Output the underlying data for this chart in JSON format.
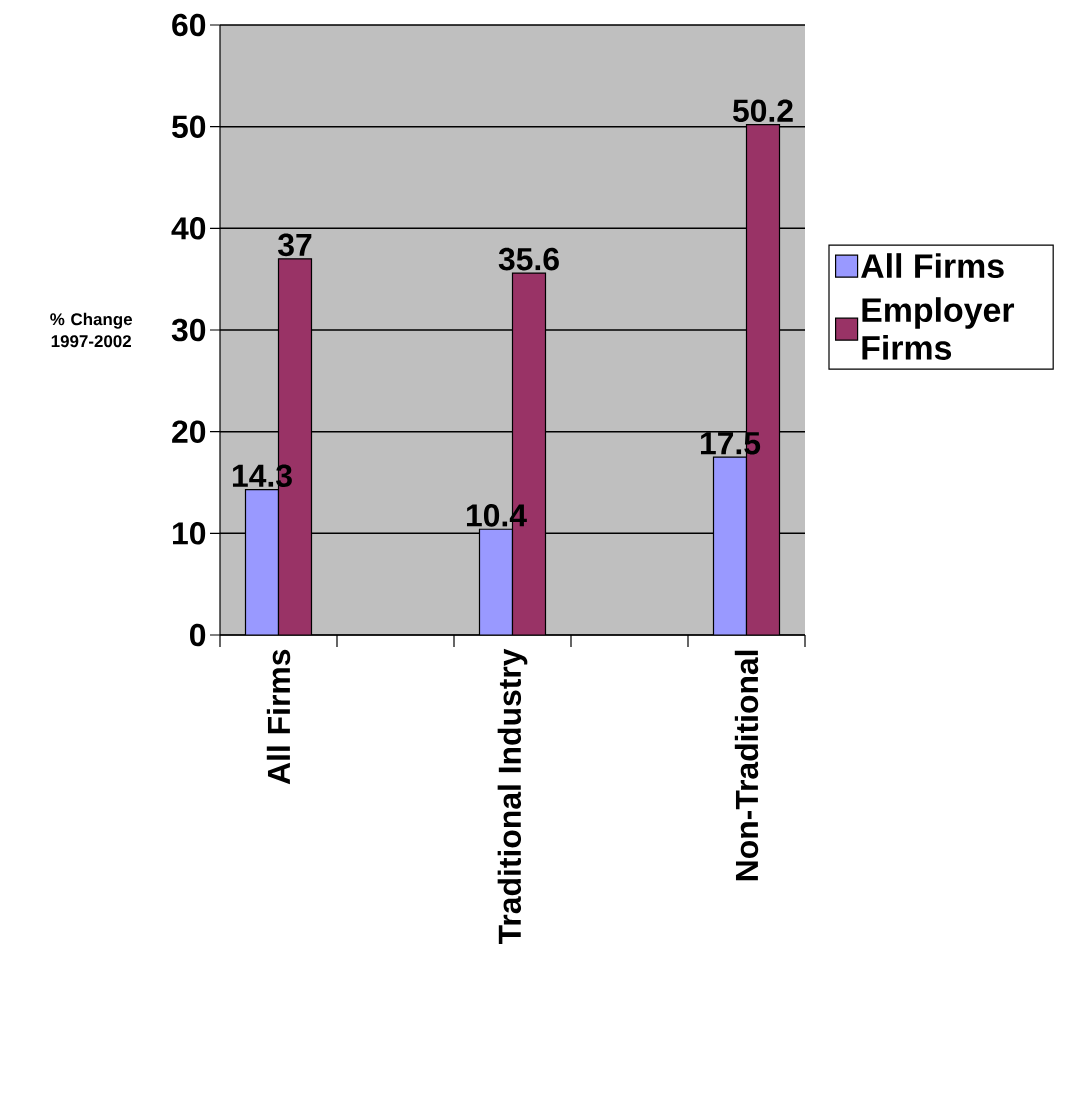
{
  "chart_data": {
    "type": "bar",
    "ylabel": "% Change 1997-2002",
    "categories": [
      "All Firms",
      "Traditional Industry",
      "Non-Traditional"
    ],
    "series": [
      {
        "name": "All Firms",
        "color": "#9999ff",
        "values": [
          14.3,
          10.4,
          17.5
        ]
      },
      {
        "name": "Employer Firms",
        "color": "#993366",
        "values": [
          37,
          35.6,
          50.2
        ]
      }
    ],
    "ylim": [
      0,
      60
    ],
    "yticks": [
      0,
      10,
      20,
      30,
      40,
      50,
      60
    ],
    "grid": "y",
    "legend": "right",
    "data_labels": true
  }
}
